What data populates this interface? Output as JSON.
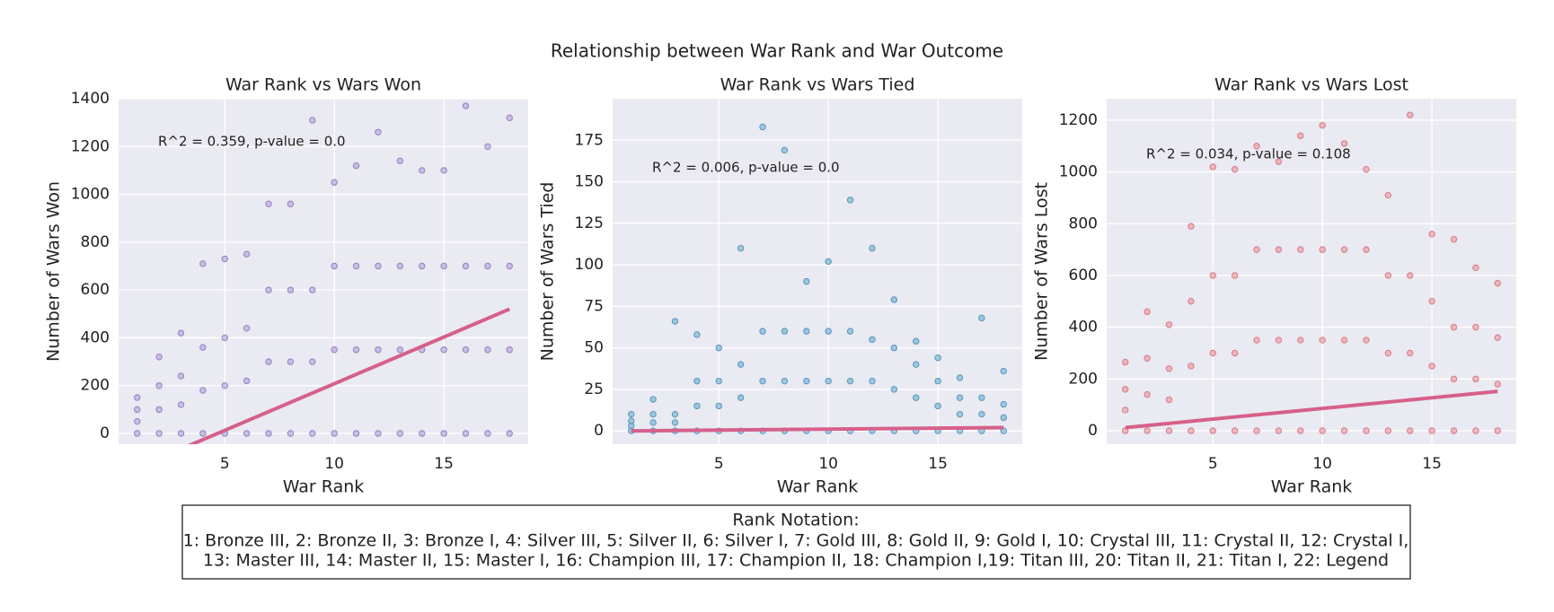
{
  "figure": {
    "title": "Relationship between War Rank and War Outcome",
    "note": {
      "heading": "Rank Notation:",
      "lines": [
        "1: Bronze III, 2: Bronze II, 3: Bronze I, 4: Silver III, 5: Silver II, 6: Silver I, 7: Gold III, 8: Gold II, 9: Gold I, 10: Crystal III, 11: Crystal II, 12: Crystal I,",
        "13: Master III, 14: Master II, 15: Master I, 16: Champion III, 17: Champion II, 18: Champion I,19: Titan III, 20: Titan II, 21: Titan I, 22: Legend"
      ]
    }
  },
  "chart_data": [
    {
      "type": "scatter",
      "title": "War Rank vs Wars Won",
      "xlabel": "War Rank",
      "ylabel": "Number of Wars Won",
      "annotation": "R^2 = 0.359, p-value = 0.0",
      "grid": true,
      "xlim": [
        0.15,
        18.85
      ],
      "xticks": [
        5,
        10,
        15
      ],
      "ylim": [
        -45,
        1400
      ],
      "yticks": [
        0,
        200,
        400,
        600,
        800,
        1000,
        1200,
        1400
      ],
      "points": {
        "color": "#b9a9dc",
        "edge": "#9580c4",
        "x": [
          1,
          1,
          1,
          1,
          2,
          2,
          2,
          2,
          3,
          3,
          3,
          3,
          4,
          4,
          4,
          4,
          5,
          5,
          5,
          5,
          6,
          6,
          6,
          6,
          7,
          7,
          7,
          7,
          8,
          8,
          8,
          8,
          9,
          9,
          9,
          9,
          10,
          10,
          10,
          10,
          11,
          11,
          11,
          11,
          12,
          12,
          12,
          12,
          13,
          13,
          13,
          13,
          14,
          14,
          14,
          14,
          15,
          15,
          15,
          15,
          16,
          16,
          16,
          16,
          17,
          17,
          17,
          17,
          18,
          18,
          18,
          18
        ],
        "y": [
          0,
          50,
          100,
          150,
          0,
          100,
          200,
          320,
          0,
          120,
          240,
          420,
          0,
          180,
          360,
          710,
          0,
          200,
          400,
          730,
          0,
          220,
          440,
          750,
          0,
          300,
          600,
          960,
          0,
          300,
          600,
          960,
          0,
          300,
          600,
          1310,
          0,
          350,
          700,
          1050,
          0,
          350,
          700,
          1120,
          0,
          350,
          700,
          1260,
          0,
          350,
          700,
          1140,
          0,
          350,
          700,
          1100,
          0,
          350,
          700,
          1100,
          0,
          350,
          700,
          1370,
          0,
          350,
          700,
          1200,
          0,
          350,
          700,
          1320
        ]
      },
      "fit": {
        "color": "#d6608a",
        "x": [
          1,
          18
        ],
        "y": [
          -143,
          520
        ]
      }
    },
    {
      "type": "scatter",
      "title": "War Rank vs Wars Tied",
      "xlabel": "War Rank",
      "ylabel": "Number of Wars Tied",
      "annotation": "R^2 = 0.006, p-value = 0.0",
      "grid": true,
      "xlim": [
        0.15,
        18.85
      ],
      "xticks": [
        5,
        10,
        15
      ],
      "ylim": [
        -8,
        200
      ],
      "yticks": [
        0,
        25,
        50,
        75,
        100,
        125,
        150,
        175
      ],
      "points": {
        "color": "#7fb6d6",
        "edge": "#5596bd",
        "x": [
          1,
          1,
          1,
          1,
          2,
          2,
          2,
          2,
          3,
          3,
          3,
          3,
          4,
          4,
          4,
          4,
          5,
          5,
          5,
          5,
          6,
          6,
          6,
          6,
          7,
          7,
          7,
          7,
          8,
          8,
          8,
          8,
          9,
          9,
          9,
          9,
          10,
          10,
          10,
          10,
          11,
          11,
          11,
          11,
          12,
          12,
          12,
          12,
          13,
          13,
          13,
          13,
          14,
          14,
          14,
          14,
          15,
          15,
          15,
          15,
          16,
          16,
          16,
          16,
          17,
          17,
          17,
          17,
          18,
          18,
          18,
          18
        ],
        "y": [
          0,
          3,
          6,
          10,
          0,
          5,
          10,
          19,
          0,
          5,
          10,
          66,
          0,
          15,
          30,
          58,
          0,
          15,
          30,
          50,
          0,
          20,
          40,
          110,
          0,
          30,
          60,
          183,
          0,
          30,
          60,
          169,
          0,
          30,
          60,
          90,
          0,
          30,
          60,
          102,
          0,
          30,
          60,
          139,
          0,
          30,
          55,
          110,
          0,
          25,
          50,
          79,
          0,
          20,
          40,
          54,
          0,
          15,
          30,
          44,
          0,
          10,
          20,
          32,
          0,
          10,
          20,
          68,
          0,
          8,
          16,
          36
        ]
      },
      "fit": {
        "color": "#d6608a",
        "x": [
          1,
          18
        ],
        "y": [
          0,
          2
        ]
      }
    },
    {
      "type": "scatter",
      "title": "War Rank vs Wars Lost",
      "xlabel": "War Rank",
      "ylabel": "Number of Wars Lost",
      "annotation": "R^2 = 0.034, p-value = 0.108",
      "grid": true,
      "xlim": [
        0.15,
        18.85
      ],
      "xticks": [
        5,
        10,
        15
      ],
      "ylim": [
        -52,
        1283
      ],
      "yticks": [
        0,
        200,
        400,
        600,
        800,
        1000,
        1200
      ],
      "points": {
        "color": "#eba0a6",
        "edge": "#d67b84",
        "x": [
          1,
          1,
          1,
          1,
          2,
          2,
          2,
          2,
          3,
          3,
          3,
          3,
          4,
          4,
          4,
          4,
          5,
          5,
          5,
          5,
          6,
          6,
          6,
          6,
          7,
          7,
          7,
          7,
          8,
          8,
          8,
          8,
          9,
          9,
          9,
          9,
          10,
          10,
          10,
          10,
          11,
          11,
          11,
          11,
          12,
          12,
          12,
          12,
          13,
          13,
          13,
          13,
          14,
          14,
          14,
          14,
          15,
          15,
          15,
          15,
          16,
          16,
          16,
          16,
          17,
          17,
          17,
          17,
          18,
          18,
          18,
          18
        ],
        "y": [
          0,
          80,
          160,
          265,
          0,
          140,
          280,
          460,
          0,
          120,
          240,
          410,
          0,
          250,
          500,
          790,
          0,
          300,
          600,
          1020,
          0,
          300,
          600,
          1010,
          0,
          350,
          700,
          1100,
          0,
          350,
          700,
          1040,
          0,
          350,
          700,
          1140,
          0,
          350,
          700,
          1180,
          0,
          350,
          700,
          1110,
          0,
          350,
          700,
          1010,
          0,
          300,
          600,
          910,
          0,
          300,
          600,
          1220,
          0,
          250,
          500,
          760,
          0,
          200,
          400,
          740,
          0,
          200,
          400,
          630,
          0,
          180,
          360,
          570
        ]
      },
      "fit": {
        "color": "#d6608a",
        "x": [
          1,
          18
        ],
        "y": [
          12,
          152
        ]
      }
    }
  ]
}
